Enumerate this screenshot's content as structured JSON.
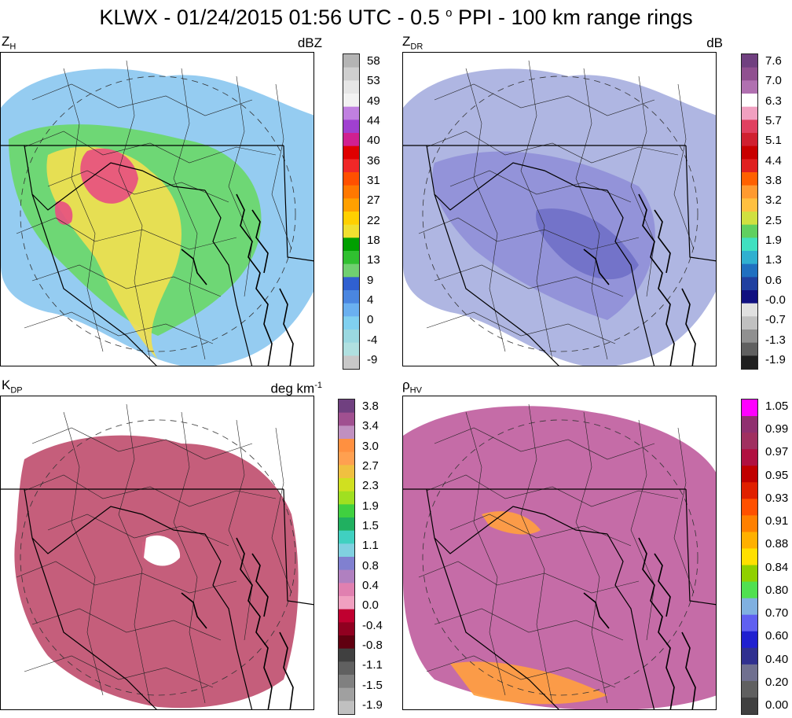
{
  "title": {
    "main": "KLWX - 01/24/2015 01:56 UTC - 0.5",
    "degree": "o",
    "rest": "PPI - 100 km range rings"
  },
  "panels": [
    {
      "id": "zh",
      "symbol": "Z",
      "sub": "H",
      "unit": "dBZ",
      "unit_sup": "",
      "ticks": [
        "58",
        "53",
        "49",
        "44",
        "40",
        "36",
        "31",
        "27",
        "22",
        "18",
        "13",
        "9",
        "4",
        "0",
        "-4",
        "-9"
      ],
      "colors": [
        "#b4b4b4",
        "#cfcfcf",
        "#e6e6e6",
        "#f2f2f2",
        "#c080e0",
        "#a040d0",
        "#d02090",
        "#e00000",
        "#f02828",
        "#ff5000",
        "#ff7800",
        "#ffa000",
        "#ffd000",
        "#f0e030",
        "#00a000",
        "#30c030",
        "#70d070",
        "#3060d0",
        "#4a86e0",
        "#6ab0f0",
        "#80d0f0",
        "#9ad8e0",
        "#b0e0e0",
        "#c8c8c8"
      ],
      "fills": [
        "#8cc8f0",
        "#6ab4f0",
        "#6ad86a",
        "#40c040",
        "#f0e050",
        "#ffa040",
        "#e85080",
        "#c02080"
      ]
    },
    {
      "id": "zdr",
      "symbol": "Z",
      "sub": "DR",
      "unit": "dB",
      "unit_sup": "",
      "ticks": [
        "7.6",
        "7.0",
        "6.3",
        "5.7",
        "5.1",
        "4.4",
        "3.8",
        "3.2",
        "2.5",
        "1.9",
        "1.3",
        "0.6",
        "-0.0",
        "-0.7",
        "-1.3",
        "-1.9"
      ],
      "colors": [
        "#704080",
        "#905090",
        "#b070b0",
        "#ffffff",
        "#f0a0c0",
        "#e04060",
        "#d02030",
        "#c80000",
        "#e02020",
        "#ff6000",
        "#ff9a30",
        "#ffc040",
        "#d0e040",
        "#60d060",
        "#40e0c0",
        "#30b0d0",
        "#2070c0",
        "#2040a0",
        "#101080",
        "#e0e0e0",
        "#c0c0c0",
        "#909090",
        "#606060",
        "#202020"
      ],
      "fills": [
        "#a8b0e0",
        "#9090d8",
        "#7070c8",
        "#b8bcd8",
        "#c8cce0",
        "#6060b8"
      ]
    },
    {
      "id": "kdp",
      "symbol": "K",
      "sub": "DP",
      "unit": "deg km",
      "unit_sup": "-1",
      "ticks": [
        "3.8",
        "3.4",
        "3.0",
        "2.7",
        "2.3",
        "1.9",
        "1.5",
        "1.1",
        "0.8",
        "0.4",
        "0.0",
        "-0.4",
        "-0.8",
        "-1.1",
        "-1.5",
        "-1.9"
      ],
      "colors": [
        "#704080",
        "#a05090",
        "#c090c0",
        "#ff9040",
        "#ffa050",
        "#f0c040",
        "#d0e020",
        "#a0e020",
        "#40d040",
        "#20b060",
        "#40d0c0",
        "#80d0e0",
        "#8080d0",
        "#b080c0",
        "#e080b0",
        "#f0a0c0",
        "#c00030",
        "#900020",
        "#600010",
        "#404040",
        "#606060",
        "#808080",
        "#a0a0a0",
        "#c0c0c0"
      ],
      "fills": [
        "#c05070",
        "#b84868",
        "#d06080"
      ]
    },
    {
      "id": "rhohv",
      "symbol": "ρ",
      "sub": "HV",
      "unit": "",
      "unit_sup": "",
      "ticks": [
        "1.05",
        "0.99",
        "0.97",
        "0.95",
        "0.93",
        "0.91",
        "0.88",
        "0.84",
        "0.80",
        "0.70",
        "0.60",
        "0.40",
        "0.20",
        "0.00"
      ],
      "colors": [
        "#ff00ff",
        "#903070",
        "#a03060",
        "#b01040",
        "#c00000",
        "#e02000",
        "#ff5000",
        "#ff8000",
        "#ffb000",
        "#ffe000",
        "#90d000",
        "#50e050",
        "#80b0e0",
        "#6060f0",
        "#2020d0",
        "#303090",
        "#707090",
        "#606060",
        "#404040"
      ],
      "fills": [
        "#c060a0",
        "#b05898",
        "#e070c0",
        "#ffa040"
      ]
    }
  ]
}
